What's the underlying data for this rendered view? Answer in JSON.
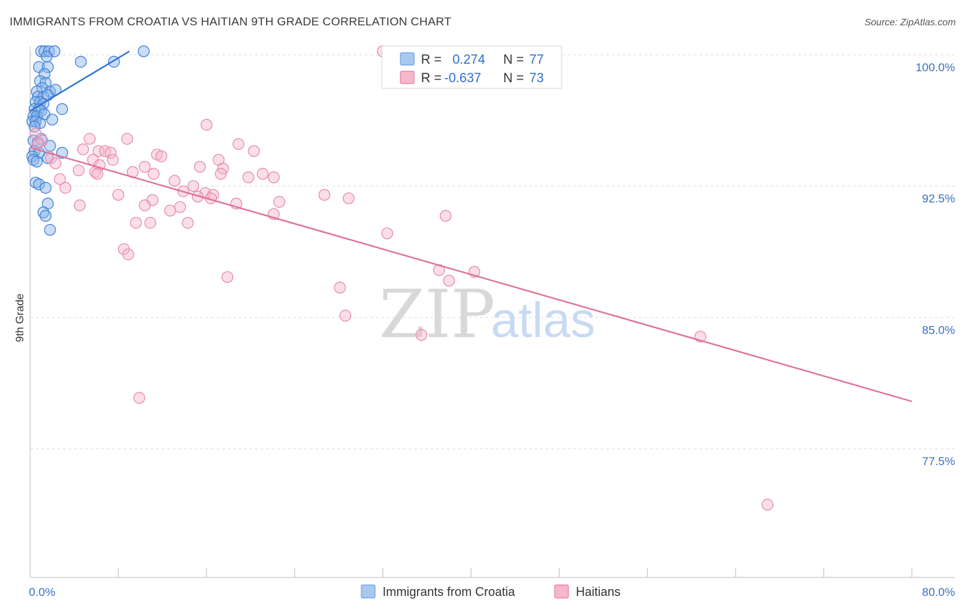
{
  "header": {
    "title": "IMMIGRANTS FROM CROATIA VS HAITIAN 9TH GRADE CORRELATION CHART",
    "source": "Source: ZipAtlas.com"
  },
  "watermark": {
    "zip": "ZIP",
    "atlas": "atlas"
  },
  "legend": {
    "r_label": "R =",
    "n_label": "N =",
    "series": [
      {
        "name": "Immigrants from Croatia",
        "r": "0.274",
        "n": "77",
        "color": "#5b93db",
        "fill": "#a9c8f0"
      },
      {
        "name": "Haitians",
        "r": "-0.637",
        "n": "73",
        "color": "#e46a96",
        "fill": "#f6b6cb"
      }
    ]
  },
  "chart_data": {
    "type": "scatter",
    "title": "IMMIGRANTS FROM CROATIA VS HAITIAN 9TH GRADE CORRELATION CHART",
    "xlabel": "",
    "ylabel": "9th Grade",
    "xlim": [
      0,
      80
    ],
    "ylim": [
      70.5,
      100.5
    ],
    "x_tick_labels": [
      "0.0%",
      "80.0%"
    ],
    "y_ticks": [
      100.0,
      92.5,
      85.0,
      77.5
    ],
    "y_tick_labels": [
      "100.0%",
      "92.5%",
      "85.0%",
      "77.5%"
    ],
    "series": [
      {
        "name": "Immigrants from Croatia",
        "color": "#4a86d8",
        "trend": {
          "x": [
            0,
            9
          ],
          "y": [
            96.8,
            100.2
          ]
        },
        "points": [
          [
            1.0,
            100.2
          ],
          [
            1.3,
            100.2
          ],
          [
            1.7,
            100.2
          ],
          [
            2.2,
            100.2
          ],
          [
            1.5,
            99.9
          ],
          [
            4.6,
            99.6
          ],
          [
            7.6,
            99.6
          ],
          [
            10.3,
            100.2
          ],
          [
            0.8,
            99.3
          ],
          [
            1.6,
            99.3
          ],
          [
            1.3,
            98.9
          ],
          [
            0.9,
            98.5
          ],
          [
            1.4,
            98.4
          ],
          [
            1.1,
            98.1
          ],
          [
            0.6,
            97.9
          ],
          [
            1.8,
            97.9
          ],
          [
            2.3,
            98.0
          ],
          [
            0.7,
            97.6
          ],
          [
            1.2,
            97.6
          ],
          [
            1.6,
            97.7
          ],
          [
            0.5,
            97.3
          ],
          [
            0.9,
            97.3
          ],
          [
            1.2,
            97.2
          ],
          [
            0.4,
            96.9
          ],
          [
            0.8,
            96.9
          ],
          [
            1.0,
            96.8
          ],
          [
            2.9,
            96.9
          ],
          [
            0.3,
            96.5
          ],
          [
            0.6,
            96.5
          ],
          [
            1.3,
            96.6
          ],
          [
            0.2,
            96.2
          ],
          [
            0.5,
            96.2
          ],
          [
            0.9,
            96.1
          ],
          [
            2.0,
            96.3
          ],
          [
            0.4,
            95.9
          ],
          [
            0.3,
            95.1
          ],
          [
            0.7,
            95.0
          ],
          [
            1.0,
            95.2
          ],
          [
            1.8,
            94.8
          ],
          [
            0.4,
            94.5
          ],
          [
            0.8,
            94.4
          ],
          [
            2.9,
            94.4
          ],
          [
            0.2,
            94.2
          ],
          [
            1.6,
            94.1
          ],
          [
            0.3,
            94.0
          ],
          [
            0.6,
            93.9
          ],
          [
            0.5,
            92.7
          ],
          [
            0.8,
            92.6
          ],
          [
            1.4,
            92.4
          ],
          [
            1.6,
            91.5
          ],
          [
            1.2,
            91.0
          ],
          [
            1.4,
            90.8
          ],
          [
            1.8,
            90.0
          ]
        ]
      },
      {
        "name": "Haitians",
        "color": "#e06f98",
        "trend": {
          "x": [
            0,
            80
          ],
          "y": [
            94.7,
            80.2
          ]
        },
        "points": [
          [
            32.0,
            100.2
          ],
          [
            16.0,
            96.0
          ],
          [
            0.5,
            95.5
          ],
          [
            1.1,
            95.1
          ],
          [
            0.7,
            94.9
          ],
          [
            5.4,
            95.2
          ],
          [
            8.8,
            95.2
          ],
          [
            18.9,
            94.9
          ],
          [
            20.3,
            94.5
          ],
          [
            4.8,
            94.6
          ],
          [
            6.2,
            94.5
          ],
          [
            6.8,
            94.5
          ],
          [
            7.3,
            94.4
          ],
          [
            11.5,
            94.3
          ],
          [
            11.9,
            94.2
          ],
          [
            1.9,
            94.1
          ],
          [
            5.7,
            94.0
          ],
          [
            7.5,
            94.0
          ],
          [
            17.1,
            94.0
          ],
          [
            2.3,
            93.8
          ],
          [
            6.3,
            93.7
          ],
          [
            10.4,
            93.6
          ],
          [
            15.4,
            93.6
          ],
          [
            17.5,
            93.5
          ],
          [
            4.4,
            93.4
          ],
          [
            5.9,
            93.3
          ],
          [
            6.1,
            93.2
          ],
          [
            9.3,
            93.3
          ],
          [
            11.2,
            93.2
          ],
          [
            17.3,
            93.2
          ],
          [
            19.8,
            93.0
          ],
          [
            21.1,
            93.2
          ],
          [
            22.1,
            93.0
          ],
          [
            13.1,
            92.8
          ],
          [
            14.8,
            92.5
          ],
          [
            3.2,
            92.4
          ],
          [
            2.7,
            92.9
          ],
          [
            13.9,
            92.2
          ],
          [
            15.9,
            92.1
          ],
          [
            8.0,
            92.0
          ],
          [
            16.6,
            92.0
          ],
          [
            15.2,
            91.9
          ],
          [
            16.4,
            91.8
          ],
          [
            26.7,
            92.0
          ],
          [
            28.9,
            91.8
          ],
          [
            11.1,
            91.7
          ],
          [
            10.4,
            91.4
          ],
          [
            18.7,
            91.5
          ],
          [
            22.6,
            91.6
          ],
          [
            4.5,
            91.4
          ],
          [
            13.6,
            91.3
          ],
          [
            12.7,
            91.1
          ],
          [
            22.1,
            90.9
          ],
          [
            37.7,
            90.8
          ],
          [
            9.6,
            90.4
          ],
          [
            10.9,
            90.4
          ],
          [
            14.3,
            90.4
          ],
          [
            32.4,
            89.8
          ],
          [
            8.5,
            88.9
          ],
          [
            8.9,
            88.6
          ],
          [
            37.1,
            87.7
          ],
          [
            40.3,
            87.6
          ],
          [
            38.0,
            87.1
          ],
          [
            17.9,
            87.3
          ],
          [
            28.1,
            86.7
          ],
          [
            28.6,
            85.1
          ],
          [
            35.5,
            84.0
          ],
          [
            60.8,
            83.9
          ],
          [
            9.9,
            80.4
          ],
          [
            66.9,
            74.3
          ]
        ]
      }
    ]
  }
}
